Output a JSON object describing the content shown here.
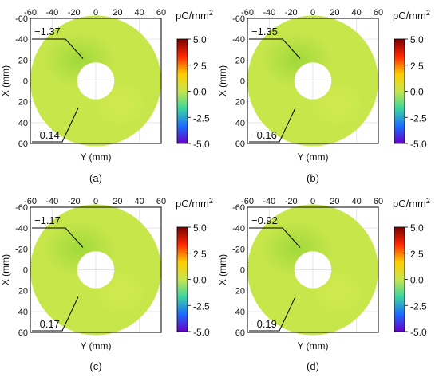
{
  "colors": {
    "ring_base": "#c6e64a",
    "ring_light": "#d4ea50",
    "ring_green": "#9ed83a",
    "frame": "#000000",
    "leader": "#000000"
  },
  "colorbar": {
    "unit_prefix": "pC/mm",
    "unit_superscript": "2",
    "ticks": [
      "5.0",
      "2.5",
      "0.0",
      "-2.5",
      "-5.0"
    ],
    "stops": [
      "#7a0000",
      "#ff2a00",
      "#ffcc00",
      "#c6e64a",
      "#39d6a0",
      "#1a6dff",
      "#6a00c8"
    ]
  },
  "panels": [
    {
      "caption": "(a)",
      "x_label": "Y (mm)",
      "y_label": "X (mm)",
      "x_ticks": [
        "-60",
        "-40",
        "-20",
        "0",
        "20",
        "40",
        "60"
      ],
      "y_ticks": [
        "-60",
        "-40",
        "-20",
        "0",
        "20",
        "40",
        "60"
      ],
      "min_label": "−1.37",
      "max_label": "−0.14"
    },
    {
      "caption": "(b)",
      "x_label": "Y (mm)",
      "y_label": "X (mm)",
      "x_ticks": [
        "-60",
        "-40",
        "-20",
        "0",
        "20",
        "40",
        "60"
      ],
      "y_ticks": [
        "-60",
        "-40",
        "-20",
        "0",
        "20",
        "40",
        "60"
      ],
      "min_label": "−1.35",
      "max_label": "−0.16"
    },
    {
      "caption": "(c)",
      "x_label": "Y (mm)",
      "y_label": "X (mm)",
      "x_ticks": [
        "-60",
        "-40",
        "-20",
        "0",
        "20",
        "40",
        "60"
      ],
      "y_ticks": [
        "-60",
        "-40",
        "-20",
        "0",
        "20",
        "40",
        "60"
      ],
      "min_label": "−1.17",
      "max_label": "−0.17"
    },
    {
      "caption": "(d)",
      "x_label": "Y (mm)",
      "y_label": "X (mm)",
      "x_ticks": [
        "-60",
        "-40",
        "-20",
        "0",
        "20",
        "40",
        "60"
      ],
      "y_ticks": [
        "-60",
        "-40",
        "-20",
        "0",
        "20",
        "40",
        "60"
      ],
      "min_label": "−0.92",
      "max_label": "−0.19"
    }
  ]
}
